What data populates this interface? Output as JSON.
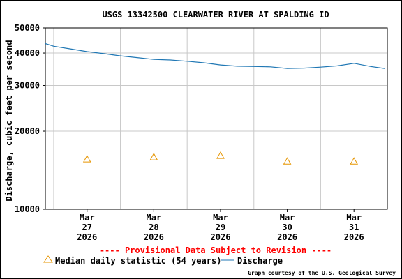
{
  "chart_data": {
    "type": "line",
    "title": "USGS 13342500 CLEARWATER RIVER AT SPALDING ID",
    "ylabel": "Discharge, cubic feet per second",
    "xlabel": "",
    "y_scale": "log",
    "ylim": [
      10000,
      50000
    ],
    "y_ticks": [
      {
        "value": 10000,
        "label": "10000"
      },
      {
        "value": 20000,
        "label": "20000"
      },
      {
        "value": 30000,
        "label": "30000"
      },
      {
        "value": 40000,
        "label": "40000"
      },
      {
        "value": 50000,
        "label": "50000"
      }
    ],
    "xlim": [
      "2026-03-26T09:00",
      "2026-03-31T12:00"
    ],
    "x_ticks": [
      {
        "date": "2026-03-27T00:00",
        "lines": [
          "Mar",
          "27",
          "2026"
        ]
      },
      {
        "date": "2026-03-28T00:00",
        "lines": [
          "Mar",
          "28",
          "2026"
        ]
      },
      {
        "date": "2026-03-29T00:00",
        "lines": [
          "Mar",
          "29",
          "2026"
        ]
      },
      {
        "date": "2026-03-30T00:00",
        "lines": [
          "Mar",
          "30",
          "2026"
        ]
      },
      {
        "date": "2026-03-31T00:00",
        "lines": [
          "Mar",
          "31",
          "2026"
        ]
      }
    ],
    "grid": true,
    "series": [
      {
        "name": "Discharge",
        "kind": "line",
        "color": "#1f77b4",
        "points": [
          [
            "2026-03-26T09:00",
            43500
          ],
          [
            "2026-03-26T12:00",
            42500
          ],
          [
            "2026-03-26T18:00",
            41500
          ],
          [
            "2026-03-27T00:00",
            40500
          ],
          [
            "2026-03-27T06:00",
            39800
          ],
          [
            "2026-03-27T12:00",
            39000
          ],
          [
            "2026-03-27T18:00",
            38400
          ],
          [
            "2026-03-28T00:00",
            37800
          ],
          [
            "2026-03-28T06:00",
            37600
          ],
          [
            "2026-03-28T12:00",
            37200
          ],
          [
            "2026-03-28T18:00",
            36700
          ],
          [
            "2026-03-29T00:00",
            36000
          ],
          [
            "2026-03-29T06:00",
            35600
          ],
          [
            "2026-03-29T12:00",
            35500
          ],
          [
            "2026-03-29T18:00",
            35400
          ],
          [
            "2026-03-30T00:00",
            34900
          ],
          [
            "2026-03-30T06:00",
            35000
          ],
          [
            "2026-03-30T12:00",
            35300
          ],
          [
            "2026-03-30T18:00",
            35700
          ],
          [
            "2026-03-31T00:00",
            36500
          ],
          [
            "2026-03-31T06:00",
            35500
          ],
          [
            "2026-03-31T11:00",
            34900
          ]
        ]
      },
      {
        "name": "Median daily statistic (54 years)",
        "kind": "marker",
        "color": "#e69500",
        "points": [
          [
            "2026-03-27T00:00",
            15600
          ],
          [
            "2026-03-28T00:00",
            15900
          ],
          [
            "2026-03-29T00:00",
            16100
          ],
          [
            "2026-03-30T00:00",
            15300
          ],
          [
            "2026-03-31T00:00",
            15300
          ]
        ]
      }
    ]
  },
  "legend": {
    "median_label": "Median daily statistic (54 years)",
    "discharge_label": "Discharge"
  },
  "provisional_note": "---- Provisional Data Subject to Revision ----",
  "provisional_color": "#ff0000",
  "credit": "Graph courtesy of the U.S. Geological Survey"
}
